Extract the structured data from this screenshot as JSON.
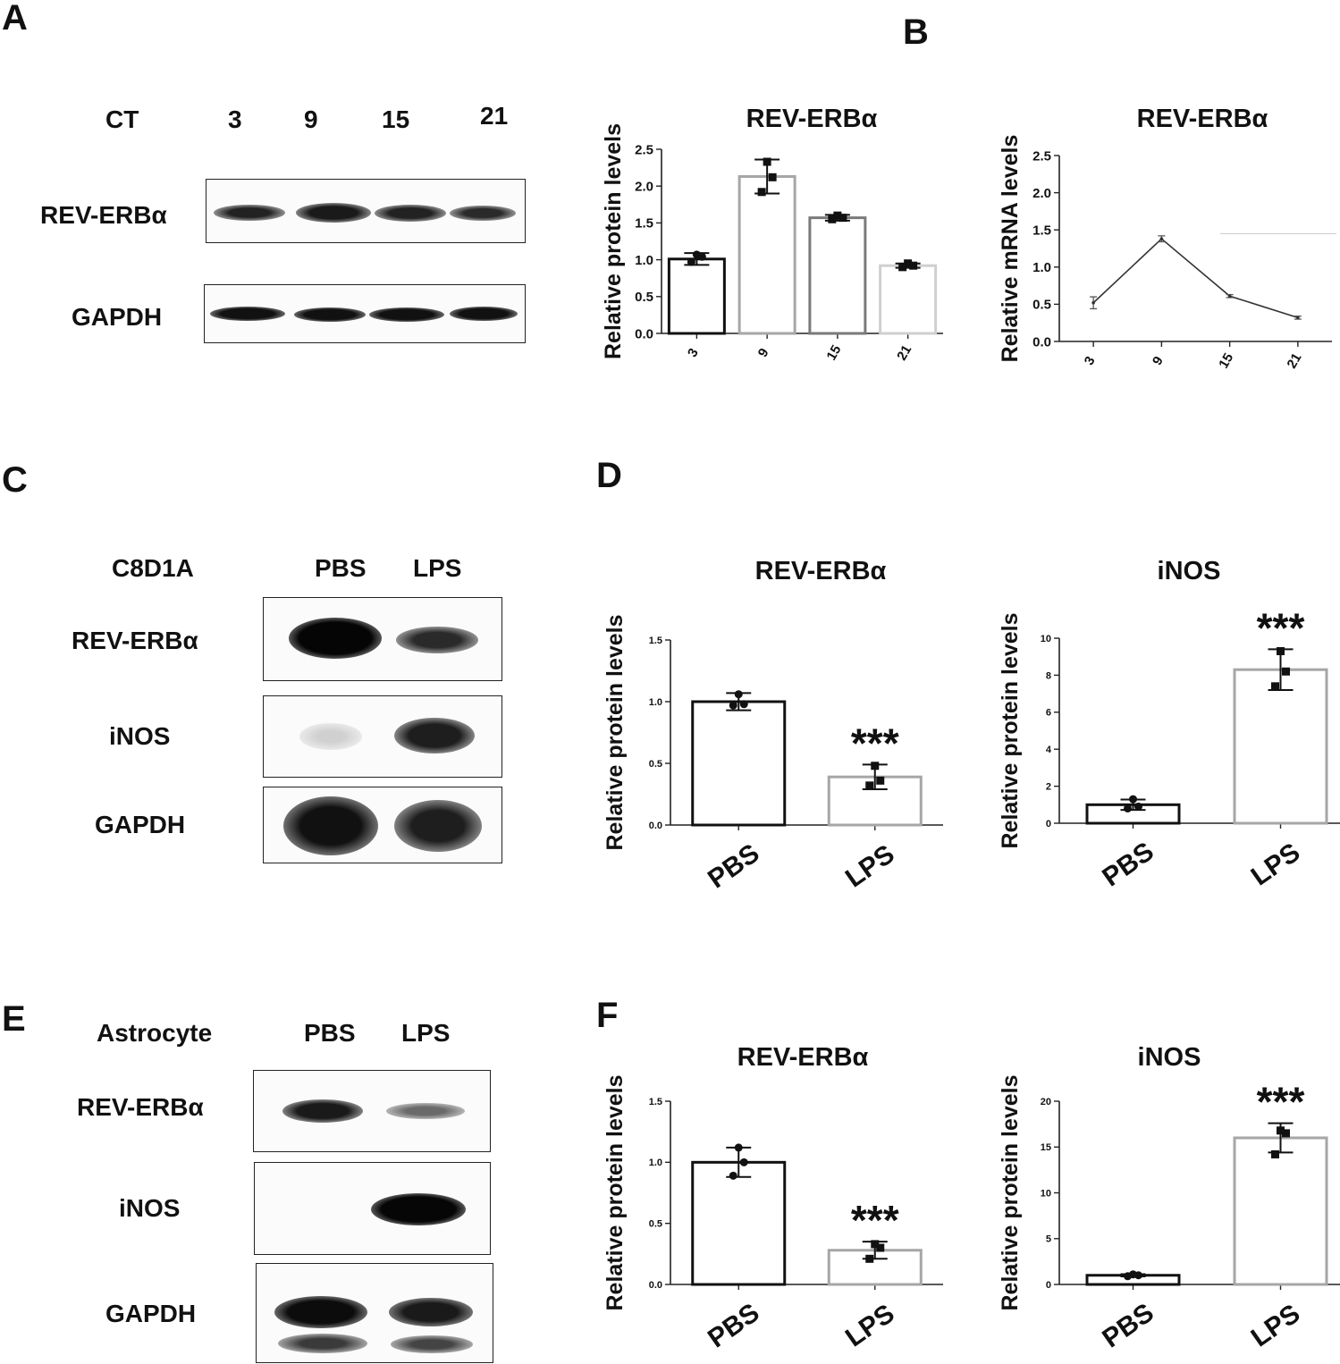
{
  "panels": {
    "A": "A",
    "B": "B",
    "C": "C",
    "D": "D",
    "E": "E",
    "F": "F"
  },
  "blot_a": {
    "ct_label": "CT",
    "lanes": [
      "3",
      "9",
      "15",
      "21"
    ],
    "rows": [
      "REV-ERBα",
      "GAPDH"
    ]
  },
  "blot_c": {
    "cell_label": "C8D1A",
    "lanes": [
      "PBS",
      "LPS"
    ],
    "rows": [
      "REV-ERBα",
      "iNOS",
      "GAPDH"
    ]
  },
  "blot_e": {
    "cell_label": "Astrocyte",
    "lanes": [
      "PBS",
      "LPS"
    ],
    "rows": [
      "REV-ERBα",
      "iNOS",
      "GAPDH"
    ]
  },
  "chart_data": [
    {
      "id": "A-bar",
      "type": "bar",
      "title": "REV-ERBα",
      "ylabel": "Relative protein levels",
      "categories": [
        "3",
        "9",
        "15",
        "21"
      ],
      "values": [
        1.01,
        2.13,
        1.57,
        0.92
      ],
      "errors": [
        0.08,
        0.23,
        0.04,
        0.03
      ],
      "points": [
        [
          1.07,
          0.97,
          1.04
        ],
        [
          2.33,
          1.92,
          2.12
        ],
        [
          1.6,
          1.55,
          1.57
        ],
        [
          0.95,
          0.9,
          0.92
        ]
      ],
      "ylim": [
        0,
        2.5
      ],
      "yticks": [
        "0.0",
        "0.5",
        "1.0",
        "1.5",
        "2.0",
        "2.5"
      ],
      "bar_colors": [
        "#111111",
        "#a6a6a6",
        "#7a7a7a",
        "#cfcfcf"
      ]
    },
    {
      "id": "B-line",
      "type": "line",
      "title": "REV-ERBα",
      "ylabel": "Relative mRNA levels",
      "categories": [
        "3",
        "9",
        "15",
        "21"
      ],
      "values": [
        0.52,
        1.38,
        0.61,
        0.32
      ],
      "errors": [
        0.08,
        0.04,
        0.02,
        0.02
      ],
      "ylim": [
        0,
        2.5
      ],
      "yticks": [
        "0.0",
        "0.5",
        "1.0",
        "1.5",
        "2.0",
        "2.5"
      ]
    },
    {
      "id": "D-rev",
      "type": "bar",
      "title": "REV-ERBα",
      "ylabel": "Relative protein levels",
      "categories": [
        "PBS",
        "LPS"
      ],
      "values": [
        1.0,
        0.39
      ],
      "errors": [
        0.07,
        0.1
      ],
      "points": [
        [
          1.06,
          0.97,
          0.98
        ],
        [
          0.48,
          0.32,
          0.36
        ]
      ],
      "ylim": [
        0,
        1.5
      ],
      "yticks": [
        "0.0",
        "0.5",
        "1.0",
        "1.5"
      ],
      "significance": [
        null,
        "***"
      ],
      "bar_colors": [
        "#111111",
        "#a6a6a6"
      ]
    },
    {
      "id": "D-inos",
      "type": "bar",
      "title": "iNOS",
      "ylabel": "Relative protein levels",
      "categories": [
        "PBS",
        "LPS"
      ],
      "values": [
        1.0,
        8.3
      ],
      "errors": [
        0.28,
        1.1
      ],
      "points": [
        [
          1.3,
          0.8,
          0.9
        ],
        [
          9.3,
          7.4,
          8.2
        ]
      ],
      "ylim": [
        0,
        10
      ],
      "yticks": [
        "0",
        "2",
        "4",
        "6",
        "8",
        "10"
      ],
      "significance": [
        null,
        "***"
      ],
      "bar_colors": [
        "#111111",
        "#a6a6a6"
      ]
    },
    {
      "id": "F-rev",
      "type": "bar",
      "title": "REV-ERBα",
      "ylabel": "Relative protein levels",
      "categories": [
        "PBS",
        "LPS"
      ],
      "values": [
        1.0,
        0.28
      ],
      "errors": [
        0.12,
        0.07
      ],
      "points": [
        [
          1.12,
          0.89,
          1.0
        ],
        [
          0.33,
          0.21,
          0.3
        ]
      ],
      "ylim": [
        0,
        1.5
      ],
      "yticks": [
        "0.0",
        "0.5",
        "1.0",
        "1.5"
      ],
      "significance": [
        null,
        "***"
      ],
      "bar_colors": [
        "#111111",
        "#a6a6a6"
      ]
    },
    {
      "id": "F-inos",
      "type": "bar",
      "title": "iNOS",
      "ylabel": "Relative protein levels",
      "categories": [
        "PBS",
        "LPS"
      ],
      "values": [
        1.0,
        16.0
      ],
      "errors": [
        0.12,
        1.6
      ],
      "points": [
        [
          1.1,
          0.9,
          1.0
        ],
        [
          16.8,
          14.2,
          16.5
        ]
      ],
      "ylim": [
        0,
        20
      ],
      "yticks": [
        "0",
        "5",
        "10",
        "15",
        "20"
      ],
      "significance": [
        null,
        "***"
      ],
      "bar_colors": [
        "#111111",
        "#a6a6a6"
      ]
    }
  ]
}
